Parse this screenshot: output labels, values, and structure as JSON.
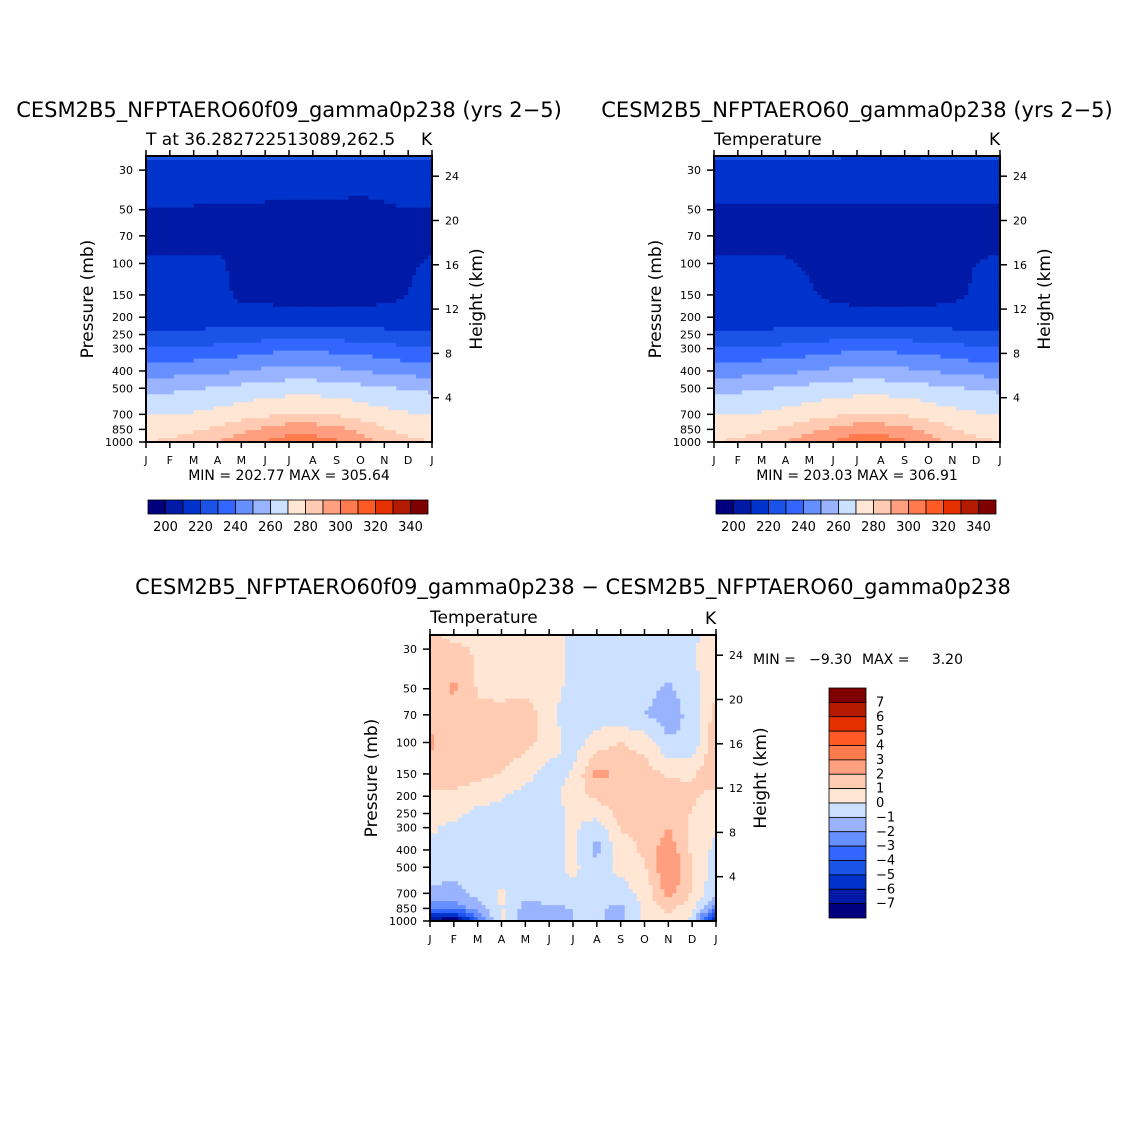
{
  "palettes": {
    "temperature": [
      "#00007f",
      "#001aa6",
      "#0033cc",
      "#1a53e6",
      "#3366ff",
      "#6690ff",
      "#99b3ff",
      "#cce0ff",
      "#ffe6d5",
      "#ffccb3",
      "#ff9f80",
      "#ff7a4d",
      "#ff5a26",
      "#e63000",
      "#b31a00",
      "#800000"
    ],
    "difference": [
      "#00007f",
      "#001aa6",
      "#0033cc",
      "#1a53e6",
      "#3366ff",
      "#6690ff",
      "#99b3ff",
      "#cce0ff",
      "#ffe6d5",
      "#ffccb3",
      "#ff9f80",
      "#ff7a4d",
      "#ff5a26",
      "#e63000",
      "#b31a00",
      "#800000"
    ]
  },
  "chart_data": [
    {
      "type": "heatmap",
      "title": "CESM2B5_NFPTAERO60f09_gamma0p238 (yrs 2−5)",
      "subtitle_left": "T at 36.282722513089,262.5",
      "subtitle_right": "K",
      "ylabel": "Pressure (mb)",
      "ylabel_right": "Height (km)",
      "x_tick_labels": [
        "J",
        "F",
        "M",
        "A",
        "M",
        "J",
        "J",
        "A",
        "S",
        "O",
        "N",
        "D",
        "J"
      ],
      "y_ticks": [
        30,
        50,
        70,
        100,
        150,
        200,
        250,
        300,
        400,
        500,
        700,
        850,
        1000
      ],
      "y_tick_labels": [
        "30",
        "50",
        "70",
        "100",
        "150",
        "200",
        "250",
        "300",
        "400",
        "500",
        "700",
        "850",
        "1000"
      ],
      "ylim": [
        1000,
        25
      ],
      "height_ticks_km": [
        4,
        8,
        12,
        16,
        20,
        24
      ],
      "height_tick_labels": [
        "4",
        "8",
        "12",
        "16",
        "20",
        "24"
      ],
      "min_max_text": "MIN = 202.77 MAX = 305.64",
      "min": 202.77,
      "max": 305.64,
      "levels": [
        200,
        210,
        220,
        230,
        240,
        250,
        260,
        270,
        280,
        290,
        300,
        310,
        320,
        330,
        340
      ],
      "colorbar_labels": [
        "200",
        "220",
        "240",
        "260",
        "280",
        "300",
        "320",
        "340"
      ],
      "grid_months_x": [
        0,
        1,
        2,
        3,
        4,
        5,
        6,
        7,
        8,
        9,
        10,
        11,
        12
      ],
      "grid_pressure_y": [
        25,
        30,
        50,
        70,
        100,
        150,
        200,
        250,
        300,
        400,
        500,
        700,
        850,
        1000
      ],
      "values": [
        [
          221,
          221,
          221,
          221,
          221,
          221,
          221,
          221,
          221,
          221,
          221,
          221,
          221
        ],
        [
          218,
          218,
          218,
          218,
          218,
          218,
          218,
          218,
          218,
          218,
          218,
          218,
          218
        ],
        [
          209,
          210,
          209,
          208,
          208,
          208,
          207,
          207,
          207,
          206,
          208,
          210,
          209
        ],
        [
          208,
          208,
          208,
          208,
          207,
          206,
          206,
          206,
          206,
          206,
          207,
          208,
          208
        ],
        [
          211,
          211,
          211,
          211,
          208,
          207,
          206,
          206,
          206,
          206,
          207,
          209,
          211
        ],
        [
          213,
          214,
          214,
          213,
          208,
          207,
          207,
          206,
          207,
          207,
          207,
          210,
          213
        ],
        [
          215,
          215,
          215,
          215,
          214,
          214,
          213,
          213,
          213,
          213,
          214,
          214,
          215
        ],
        [
          222,
          222,
          222,
          223,
          224,
          225,
          226,
          226,
          225,
          224,
          223,
          222,
          222
        ],
        [
          232,
          232,
          232,
          233,
          235,
          237,
          238,
          238,
          237,
          236,
          234,
          232,
          232
        ],
        [
          246,
          246,
          247,
          248,
          250,
          252,
          253,
          253,
          252,
          250,
          248,
          246,
          246
        ],
        [
          258,
          258,
          259,
          261,
          263,
          265,
          266,
          266,
          265,
          263,
          261,
          259,
          258
        ],
        [
          270,
          270,
          271,
          273,
          276,
          278,
          280,
          280,
          279,
          276,
          273,
          271,
          270
        ],
        [
          275,
          276,
          278,
          282,
          287,
          292,
          296,
          296,
          293,
          287,
          281,
          277,
          275
        ],
        [
          280,
          282,
          286,
          291,
          296,
          301,
          305,
          305,
          301,
          294,
          287,
          282,
          280
        ]
      ]
    },
    {
      "type": "heatmap",
      "title": "CESM2B5_NFPTAERO60_gamma0p238 (yrs 2−5)",
      "subtitle_left": "Temperature",
      "subtitle_right": "K",
      "ylabel": "Pressure (mb)",
      "ylabel_right": "Height (km)",
      "x_tick_labels": [
        "J",
        "F",
        "M",
        "A",
        "M",
        "J",
        "J",
        "A",
        "S",
        "O",
        "N",
        "D",
        "J"
      ],
      "y_ticks": [
        30,
        50,
        70,
        100,
        150,
        200,
        250,
        300,
        400,
        500,
        700,
        850,
        1000
      ],
      "y_tick_labels": [
        "30",
        "50",
        "70",
        "100",
        "150",
        "200",
        "250",
        "300",
        "400",
        "500",
        "700",
        "850",
        "1000"
      ],
      "ylim": [
        1000,
        25
      ],
      "height_ticks_km": [
        4,
        8,
        12,
        16,
        20,
        24
      ],
      "height_tick_labels": [
        "4",
        "8",
        "12",
        "16",
        "20",
        "24"
      ],
      "min_max_text": "MIN = 203.03 MAX = 306.91",
      "min": 203.03,
      "max": 306.91,
      "levels": [
        200,
        210,
        220,
        230,
        240,
        250,
        260,
        270,
        280,
        290,
        300,
        310,
        320,
        330,
        340
      ],
      "colorbar_labels": [
        "200",
        "220",
        "240",
        "260",
        "280",
        "300",
        "320",
        "340"
      ],
      "grid_months_x": [
        0,
        1,
        2,
        3,
        4,
        5,
        6,
        7,
        8,
        9,
        10,
        11,
        12
      ],
      "grid_pressure_y": [
        25,
        30,
        50,
        70,
        100,
        150,
        200,
        250,
        300,
        400,
        500,
        700,
        850,
        1000
      ],
      "values": [
        [
          221,
          221,
          221,
          221,
          221,
          221,
          219,
          218,
          219,
          221,
          221,
          221,
          221
        ],
        [
          218,
          218,
          218,
          218,
          218,
          218,
          218,
          218,
          218,
          218,
          218,
          218,
          218
        ],
        [
          208,
          208,
          208,
          208,
          208,
          208,
          208,
          208,
          208,
          208,
          208,
          208,
          208
        ],
        [
          208,
          208,
          208,
          207,
          207,
          206,
          206,
          206,
          206,
          206,
          207,
          208,
          208
        ],
        [
          211,
          211,
          211,
          211,
          209,
          207,
          206,
          206,
          206,
          207,
          208,
          210,
          211
        ],
        [
          213,
          214,
          214,
          213,
          211,
          208,
          207,
          207,
          207,
          207,
          208,
          211,
          213
        ],
        [
          215,
          215,
          215,
          215,
          214,
          214,
          213,
          213,
          213,
          213,
          214,
          214,
          215
        ],
        [
          222,
          222,
          222,
          223,
          224,
          225,
          226,
          226,
          225,
          224,
          223,
          222,
          222
        ],
        [
          232,
          232,
          232,
          233,
          235,
          237,
          238,
          238,
          237,
          236,
          234,
          232,
          232
        ],
        [
          246,
          246,
          247,
          248,
          250,
          252,
          253,
          253,
          252,
          250,
          248,
          246,
          246
        ],
        [
          258,
          258,
          259,
          261,
          263,
          265,
          266,
          266,
          265,
          263,
          261,
          259,
          258
        ],
        [
          270,
          270,
          271,
          273,
          276,
          278,
          280,
          280,
          279,
          276,
          273,
          271,
          270
        ],
        [
          275,
          276,
          278,
          282,
          287,
          292,
          296,
          296,
          293,
          287,
          281,
          277,
          275
        ],
        [
          280,
          282,
          286,
          291,
          296,
          301,
          306,
          306,
          302,
          294,
          287,
          282,
          280
        ]
      ]
    },
    {
      "type": "heatmap",
      "title": "CESM2B5_NFPTAERO60f09_gamma0p238 − CESM2B5_NFPTAERO60_gamma0p238",
      "subtitle_left": "Temperature",
      "subtitle_right": "K",
      "ylabel": "Pressure (mb)",
      "ylabel_right": "Height (km)",
      "x_tick_labels": [
        "J",
        "F",
        "M",
        "A",
        "M",
        "J",
        "J",
        "A",
        "S",
        "O",
        "N",
        "D",
        "J"
      ],
      "y_ticks": [
        30,
        50,
        70,
        100,
        150,
        200,
        250,
        300,
        400,
        500,
        700,
        850,
        1000
      ],
      "y_tick_labels": [
        "30",
        "50",
        "70",
        "100",
        "150",
        "200",
        "250",
        "300",
        "400",
        "500",
        "700",
        "850",
        "1000"
      ],
      "ylim": [
        1000,
        25
      ],
      "height_ticks_km": [
        4,
        8,
        12,
        16,
        20,
        24
      ],
      "height_tick_labels": [
        "4",
        "8",
        "12",
        "16",
        "20",
        "24"
      ],
      "min_label": "MIN =",
      "min_value_text": "−9.30",
      "max_label": "MAX =",
      "max_value_text": "3.20",
      "min": -9.3,
      "max": 3.2,
      "levels": [
        -7,
        -6,
        -5,
        -4,
        -3,
        -2,
        -1,
        0,
        1,
        2,
        3,
        4,
        5,
        6,
        7
      ],
      "colorbar_labels": [
        "7",
        "6",
        "5",
        "4",
        "3",
        "2",
        "1",
        "0",
        "−1",
        "−2",
        "−3",
        "−4",
        "−5",
        "−6",
        "−7"
      ],
      "grid_months_x": [
        0,
        1,
        2,
        3,
        4,
        5,
        6,
        7,
        8,
        9,
        10,
        11,
        12
      ],
      "grid_pressure_y": [
        25,
        30,
        50,
        70,
        100,
        150,
        200,
        250,
        300,
        400,
        500,
        700,
        850,
        1000
      ],
      "values": [
        [
          1.2,
          0.6,
          0.4,
          0.4,
          0.5,
          0.5,
          -0.3,
          -0.3,
          -0.3,
          -0.5,
          -0.3,
          -0.3,
          0.5
        ],
        [
          1.3,
          1.4,
          0.8,
          0.5,
          0.6,
          0.5,
          -0.2,
          -0.4,
          -0.5,
          -0.2,
          -0.4,
          -0.1,
          0.6
        ],
        [
          1.3,
          2.2,
          0.9,
          0.8,
          0.7,
          0.4,
          -0.3,
          -0.5,
          -0.6,
          -0.6,
          -1.2,
          -0.4,
          0.9
        ],
        [
          1.8,
          1.3,
          1.2,
          1.2,
          1.7,
          0.3,
          -0.6,
          -0.5,
          -0.8,
          -1.0,
          -1.6,
          -0.6,
          1.4
        ],
        [
          2.2,
          1.2,
          1.2,
          1.6,
          1.3,
          0.6,
          -0.5,
          0.5,
          1.0,
          0.6,
          -0.8,
          -1.0,
          2.1
        ],
        [
          1.6,
          1.4,
          1.3,
          1.0,
          0.4,
          -0.5,
          0.1,
          2.3,
          1.8,
          1.5,
          0.8,
          0.9,
          1.7
        ],
        [
          0.7,
          0.9,
          0.4,
          0.1,
          -0.4,
          -0.6,
          0.6,
          1.2,
          1.6,
          1.4,
          1.6,
          1.2,
          0.6
        ],
        [
          0.4,
          0.3,
          -0.3,
          -0.4,
          -0.5,
          -0.4,
          0.2,
          0.4,
          1.3,
          1.4,
          1.8,
          0.9,
          0.4
        ],
        [
          0.2,
          -0.3,
          -0.4,
          -0.6,
          -0.6,
          -0.5,
          0.2,
          -0.6,
          1.1,
          1.2,
          2.0,
          0.7,
          0.1
        ],
        [
          -0.3,
          -0.4,
          -0.5,
          -0.4,
          -0.5,
          -0.4,
          0.2,
          -1.4,
          0.5,
          1.2,
          2.7,
          0.8,
          -0.3
        ],
        [
          -0.4,
          -0.6,
          -0.4,
          -0.5,
          -0.7,
          -0.3,
          0.2,
          -0.5,
          0.3,
          0.9,
          3.1,
          1.1,
          -0.5
        ],
        [
          -1.2,
          -1.4,
          -0.6,
          0.2,
          -0.7,
          -0.4,
          -0.3,
          -0.4,
          -0.5,
          0.3,
          2.5,
          0.9,
          -0.9
        ],
        [
          -3.2,
          -2.5,
          -1.6,
          0.1,
          -1.4,
          -1.2,
          -1.0,
          -0.9,
          -1.2,
          0.2,
          1.3,
          0.3,
          -2.6
        ],
        [
          -6.8,
          -8.5,
          -3.5,
          0.3,
          -1.6,
          -1.1,
          -1.0,
          -0.8,
          -1.5,
          0.4,
          0.8,
          -0.4,
          -6.8
        ]
      ]
    }
  ]
}
